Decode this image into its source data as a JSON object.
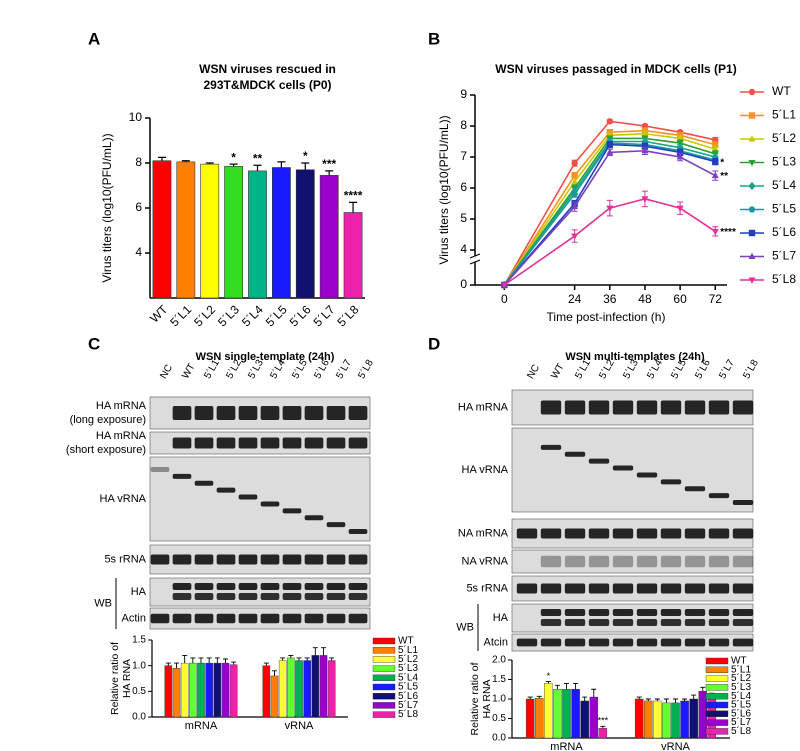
{
  "panel_labels": [
    "A",
    "B",
    "C",
    "D"
  ],
  "chart_data": [
    {
      "type": "bar",
      "title": [
        "WSN viruses rescued in",
        "293T&MDCK cells (P0)"
      ],
      "y_label": "Virus titers (log10(PFU/mL))",
      "categories": [
        "WT",
        "5´L1",
        "5´L2",
        "5´L3",
        "5´L4",
        "5´L5",
        "5´L6",
        "5´L7",
        "5´L8"
      ],
      "values": [
        8.1,
        8.05,
        7.95,
        7.85,
        7.65,
        7.8,
        7.7,
        7.45,
        5.8
      ],
      "errors": [
        0.15,
        0.05,
        0.05,
        0.1,
        0.25,
        0.25,
        0.3,
        0.2,
        0.45
      ],
      "annotations": [
        null,
        null,
        null,
        "*",
        "**",
        null,
        "*",
        "***",
        "****"
      ],
      "colors": [
        "#ff0000",
        "#ff8000",
        "#ffff00",
        "#33dd22",
        "#00b386",
        "#1a1aff",
        "#101070",
        "#9900cc",
        "#ee22aa"
      ],
      "ylim": [
        2,
        10
      ],
      "yticks": [
        4,
        6,
        8,
        10
      ]
    },
    {
      "type": "line",
      "title": "WSN viruses passaged in MDCK cells (P1)",
      "x_label": "Time post-infection (h)",
      "y_label": "Virus titers (log10(PFU/mL))",
      "x": [
        0,
        24,
        36,
        48,
        60,
        72
      ],
      "xlim": [
        -10,
        76
      ],
      "xticks": [
        0,
        24,
        36,
        48,
        60,
        72
      ],
      "ylim": [
        0,
        9
      ],
      "yticks": [
        0,
        4,
        5,
        6,
        7,
        8,
        9
      ],
      "axis_break": 4,
      "series": [
        {
          "name": "WT",
          "color": "#f0504a",
          "marker": "circle",
          "values": [
            0,
            6.8,
            8.15,
            8.0,
            7.8,
            7.55
          ],
          "errors": [
            0,
            0.1,
            0.05,
            0.05,
            0.05,
            0.08
          ]
        },
        {
          "name": "5´L1",
          "color": "#f7941d",
          "marker": "square",
          "values": [
            0,
            6.4,
            7.8,
            7.85,
            7.7,
            7.4
          ],
          "errors": [
            0,
            0.1,
            0.08,
            0.08,
            0.08,
            0.08
          ]
        },
        {
          "name": "5´L2",
          "color": "#c8c800",
          "marker": "triangle-up",
          "values": [
            0,
            6.2,
            7.7,
            7.75,
            7.6,
            7.25
          ],
          "errors": [
            0,
            0.1,
            0.08,
            0.08,
            0.08,
            0.1
          ]
        },
        {
          "name": "5´L3",
          "color": "#2e9e2e",
          "marker": "triangle-down",
          "values": [
            0,
            6.0,
            7.6,
            7.6,
            7.45,
            7.1
          ],
          "errors": [
            0,
            0.1,
            0.08,
            0.08,
            0.1,
            0.1
          ]
        },
        {
          "name": "5´L4",
          "color": "#17a589",
          "marker": "diamond",
          "values": [
            0,
            5.9,
            7.5,
            7.5,
            7.3,
            7.0
          ],
          "errors": [
            0,
            0.1,
            0.1,
            0.1,
            0.1,
            0.1
          ]
        },
        {
          "name": "5´L5",
          "color": "#1a9aa0",
          "marker": "hexagon",
          "values": [
            0,
            5.8,
            7.45,
            7.4,
            7.2,
            6.9
          ],
          "errors": [
            0,
            0.1,
            0.1,
            0.1,
            0.1,
            0.1
          ]
        },
        {
          "name": "5´L6",
          "color": "#1f3fbf",
          "marker": "square",
          "values": [
            0,
            5.5,
            7.4,
            7.35,
            7.15,
            6.85
          ],
          "errors": [
            0,
            0.1,
            0.1,
            0.1,
            0.1,
            0.1
          ],
          "end_label": "*"
        },
        {
          "name": "5´L7",
          "color": "#7b3fbf",
          "marker": "triangle-up",
          "values": [
            0,
            5.4,
            7.15,
            7.2,
            7.0,
            6.4
          ],
          "errors": [
            0,
            0.15,
            0.1,
            0.12,
            0.12,
            0.15
          ],
          "end_label": "**"
        },
        {
          "name": "5´L8",
          "color": "#e0339a",
          "marker": "triangle-down",
          "values": [
            0,
            4.45,
            5.35,
            5.65,
            5.35,
            4.6
          ],
          "errors": [
            0,
            0.2,
            0.25,
            0.25,
            0.2,
            0.15
          ],
          "end_label": "****"
        }
      ]
    },
    {
      "type": "bar",
      "y_label": [
        "Relative ratio of",
        "HA RNA"
      ],
      "categories": [
        "mRNA",
        "vRNA"
      ],
      "ylim": [
        0,
        1.5
      ],
      "yticks": [
        {
          "value": 0,
          "label": "0.0"
        },
        {
          "value": 0.5,
          "label": "0.5"
        },
        {
          "value": 1,
          "label": "1.0"
        },
        {
          "value": 1.5,
          "label": "1.5"
        }
      ],
      "series": [
        {
          "name": "WT",
          "color": "#ff0000",
          "values": [
            1.0,
            1.0
          ],
          "errors": [
            0.05,
            0.05
          ]
        },
        {
          "name": "5´L1",
          "color": "#ff8000",
          "values": [
            0.95,
            0.8
          ],
          "errors": [
            0.1,
            0.1
          ]
        },
        {
          "name": "5´L2",
          "color": "#ffff33",
          "values": [
            1.05,
            1.1
          ],
          "errors": [
            0.15,
            0.05
          ]
        },
        {
          "name": "5´L3",
          "color": "#66ff33",
          "values": [
            1.05,
            1.15
          ],
          "errors": [
            0.1,
            0.05
          ]
        },
        {
          "name": "5´L4",
          "color": "#00b050",
          "values": [
            1.05,
            1.1
          ],
          "errors": [
            0.1,
            0.05
          ]
        },
        {
          "name": "5´L5",
          "color": "#1a1aff",
          "values": [
            1.05,
            1.1
          ],
          "errors": [
            0.1,
            0.05
          ]
        },
        {
          "name": "5´L6",
          "color": "#101070",
          "values": [
            1.05,
            1.2
          ],
          "errors": [
            0.1,
            0.15
          ]
        },
        {
          "name": "5´L7",
          "color": "#9900cc",
          "values": [
            1.05,
            1.2
          ],
          "errors": [
            0.08,
            0.15
          ]
        },
        {
          "name": "5´L8",
          "color": "#ee22aa",
          "values": [
            1.02,
            1.1
          ],
          "errors": [
            0.05,
            0.05
          ]
        }
      ]
    },
    {
      "type": "bar",
      "y_label": [
        "Relative ratio of",
        "HA RNA"
      ],
      "categories": [
        "mRNA",
        "vRNA"
      ],
      "ylim": [
        0,
        2
      ],
      "yticks": [
        {
          "value": 0,
          "label": "0.0"
        },
        {
          "value": 0.5,
          "label": "0.5"
        },
        {
          "value": 1,
          "label": "1.0"
        },
        {
          "value": 1.5,
          "label": "1.5"
        },
        {
          "value": 2,
          "label": "2.0"
        }
      ],
      "series": [
        {
          "name": "WT",
          "color": "#ff0000",
          "values": [
            1.0,
            1.0
          ],
          "errors": [
            0.05,
            0.05
          ]
        },
        {
          "name": "5´L1",
          "color": "#ff8000",
          "values": [
            1.02,
            0.95
          ],
          "errors": [
            0.05,
            0.05
          ]
        },
        {
          "name": "5´L2",
          "color": "#ffff33",
          "values": [
            1.4,
            0.95
          ],
          "errors": [
            0.05,
            0.05
          ],
          "annotations": [
            "*",
            null
          ]
        },
        {
          "name": "5´L3",
          "color": "#66ff33",
          "values": [
            1.25,
            0.9
          ],
          "errors": [
            0.1,
            0.1
          ]
        },
        {
          "name": "5´L4",
          "color": "#00b050",
          "values": [
            1.25,
            0.9
          ],
          "errors": [
            0.15,
            0.1
          ]
        },
        {
          "name": "5´L5",
          "color": "#1a1aff",
          "values": [
            1.25,
            0.95
          ],
          "errors": [
            0.15,
            0.05
          ]
        },
        {
          "name": "5´L6",
          "color": "#101070",
          "values": [
            0.95,
            1.0
          ],
          "errors": [
            0.1,
            0.1
          ]
        },
        {
          "name": "5´L7",
          "color": "#9900cc",
          "values": [
            1.05,
            1.2
          ],
          "errors": [
            0.2,
            0.1
          ]
        },
        {
          "name": "5´L8",
          "color": "#ee22aa",
          "values": [
            0.25,
            1.05
          ],
          "errors": [
            0.05,
            0.1
          ],
          "annotations": [
            "***",
            null
          ]
        }
      ]
    }
  ],
  "blots": [
    {
      "title": "WSN single-template (24h)",
      "lanes": [
        "NC",
        "WT",
        "5´L1",
        "5´L2",
        "5´L3",
        "5´L4",
        "5´L5",
        "5´L6",
        "5´L7",
        "5´L8"
      ],
      "rows": [
        [
          "HA mRNA",
          "(long exposure)"
        ],
        [
          "HA mRNA",
          "(short exposure)"
        ],
        [
          "HA vRNA"
        ],
        [
          "5s rRNA"
        ]
      ],
      "wb": {
        "label": "WB",
        "rows": [
          "HA",
          "Actin"
        ]
      }
    },
    {
      "title": "WSN multi-templates (24h)",
      "lanes": [
        "NC",
        "WT",
        "5´L1",
        "5´L2",
        "5´L3",
        "5´L4",
        "5´L5",
        "5´L6",
        "5´L7",
        "5´L8"
      ],
      "rows": [
        [
          "HA mRNA"
        ],
        [
          "HA vRNA"
        ],
        [
          "NA mRNA"
        ],
        [
          "NA vRNA"
        ],
        [
          "5s rRNA"
        ]
      ],
      "wb": {
        "label": "WB",
        "rows": [
          "HA",
          "Atcin"
        ]
      }
    }
  ]
}
